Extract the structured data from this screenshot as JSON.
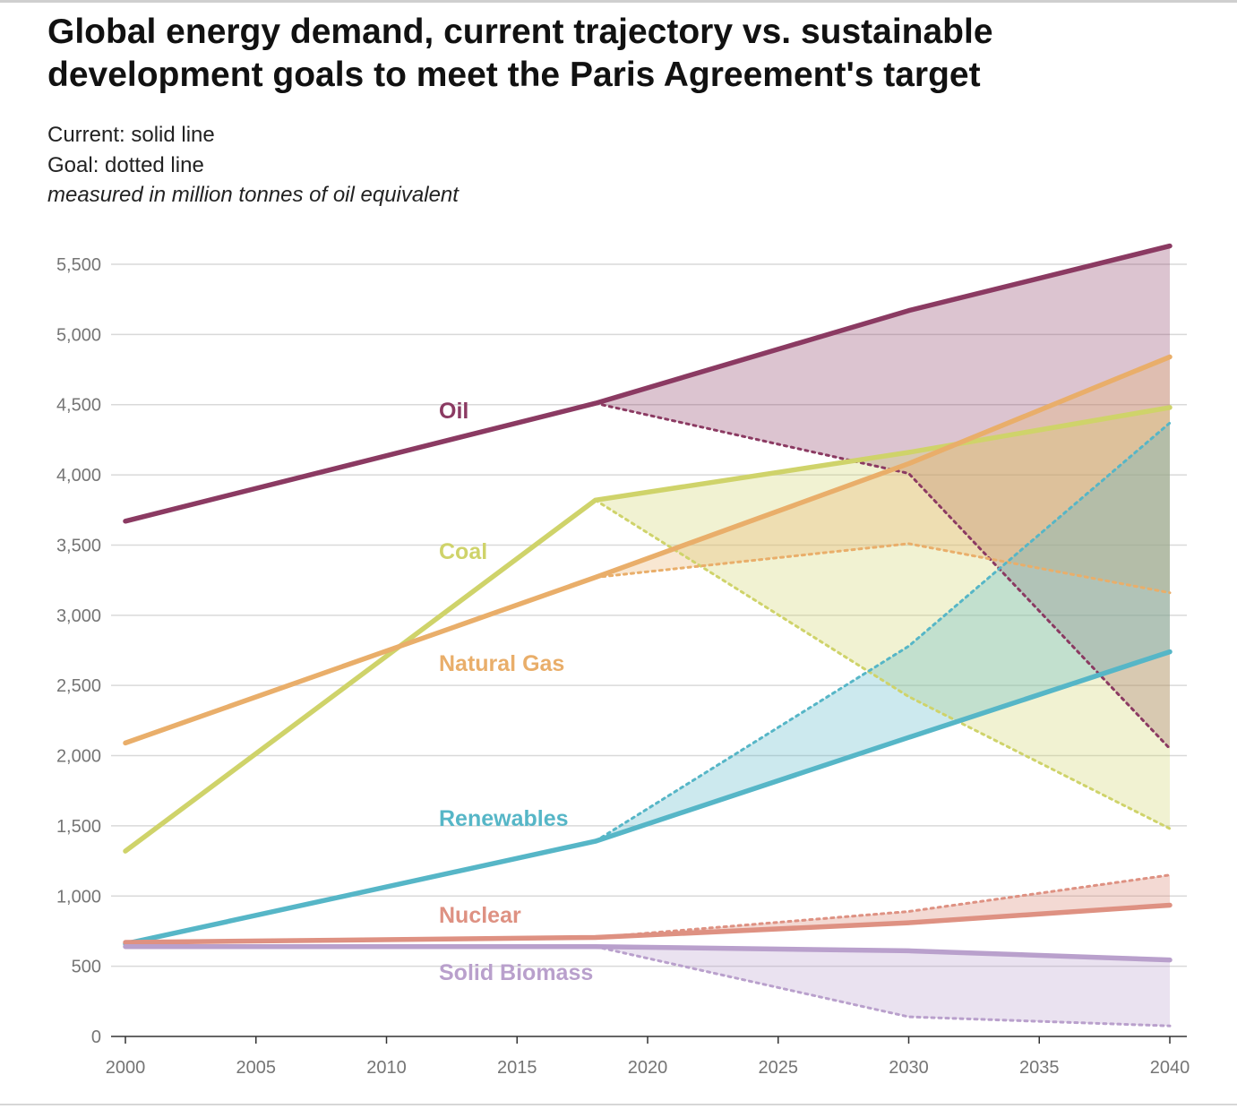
{
  "header": {
    "title": "Global energy demand, current trajectory vs. sustainable development goals to meet the Paris Agreement's target",
    "subtitle_1": "Current: solid line",
    "subtitle_2": "Goal: dotted line",
    "subtitle_3": "measured in million tonnes of oil equivalent"
  },
  "chart_data": {
    "type": "line",
    "title": "Global energy demand, current trajectory vs. sustainable development goals to meet the Paris Agreement's target",
    "xlabel": "",
    "ylabel": "",
    "xlim": [
      2000,
      2040
    ],
    "ylim": [
      0,
      5500
    ],
    "x_ticks": [
      2000,
      2005,
      2010,
      2015,
      2020,
      2025,
      2030,
      2035,
      2040
    ],
    "y_ticks": [
      0,
      500,
      1000,
      1500,
      2000,
      2500,
      3000,
      3500,
      4000,
      4500,
      5000,
      5500
    ],
    "y_tick_labels": [
      "0",
      "500",
      "1,000",
      "1,500",
      "2,000",
      "2,500",
      "3,000",
      "3,500",
      "4,000",
      "4,500",
      "5,000",
      "5,500"
    ],
    "grid": "horizontal",
    "legend": "inline labels",
    "series": [
      {
        "name": "Oil",
        "color": "#8b3a62",
        "fill": "rgba(139,58,98,0.30)",
        "current": [
          [
            2000,
            3670
          ],
          [
            2018,
            4510
          ],
          [
            2030,
            5170
          ],
          [
            2040,
            5630
          ]
        ],
        "goal": [
          [
            2018,
            4510
          ],
          [
            2030,
            4010
          ],
          [
            2040,
            2050
          ]
        ]
      },
      {
        "name": "Coal",
        "color": "#cfd36a",
        "fill": "rgba(207,211,106,0.30)",
        "current": [
          [
            2000,
            1320
          ],
          [
            2018,
            3820
          ],
          [
            2030,
            4160
          ],
          [
            2040,
            4480
          ]
        ],
        "goal": [
          [
            2018,
            3820
          ],
          [
            2030,
            2420
          ],
          [
            2040,
            1480
          ]
        ]
      },
      {
        "name": "Natural Gas",
        "color": "#e9ae6a",
        "fill": "rgba(233,174,106,0.30)",
        "current": [
          [
            2000,
            2090
          ],
          [
            2018,
            3270
          ],
          [
            2030,
            4080
          ],
          [
            2040,
            4840
          ]
        ],
        "goal": [
          [
            2018,
            3270
          ],
          [
            2030,
            3510
          ],
          [
            2040,
            3160
          ]
        ]
      },
      {
        "name": "Renewables",
        "color": "#56b6c7",
        "fill": "rgba(86,182,199,0.30)",
        "current": [
          [
            2000,
            660
          ],
          [
            2018,
            1390
          ],
          [
            2030,
            2130
          ],
          [
            2040,
            2740
          ]
        ],
        "goal": [
          [
            2018,
            1390
          ],
          [
            2030,
            2780
          ],
          [
            2040,
            4370
          ]
        ]
      },
      {
        "name": "Nuclear",
        "color": "#de9182",
        "fill": "rgba(222,145,130,0.35)",
        "current": [
          [
            2000,
            670
          ],
          [
            2018,
            705
          ],
          [
            2030,
            810
          ],
          [
            2040,
            935
          ]
        ],
        "goal": [
          [
            2018,
            705
          ],
          [
            2030,
            890
          ],
          [
            2040,
            1150
          ]
        ]
      },
      {
        "name": "Solid Biomass",
        "color": "#b9a0cc",
        "fill": "rgba(185,160,204,0.30)",
        "current": [
          [
            2000,
            640
          ],
          [
            2018,
            640
          ],
          [
            2030,
            610
          ],
          [
            2040,
            545
          ]
        ],
        "goal": [
          [
            2018,
            640
          ],
          [
            2030,
            140
          ],
          [
            2040,
            75
          ]
        ]
      }
    ]
  }
}
